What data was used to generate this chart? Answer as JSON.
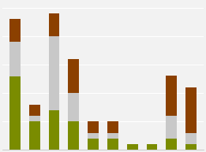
{
  "bars": [
    {
      "olive": 13,
      "silver": 6,
      "bronze": 4
    },
    {
      "olive": 5,
      "silver": 1,
      "bronze": 2
    },
    {
      "olive": 7,
      "silver": 13,
      "bronze": 4
    },
    {
      "olive": 5,
      "silver": 5,
      "bronze": 6
    },
    {
      "olive": 2,
      "silver": 1,
      "bronze": 2
    },
    {
      "olive": 2,
      "silver": 1,
      "bronze": 2
    },
    {
      "olive": 1,
      "silver": 0,
      "bronze": 0
    },
    {
      "olive": 1,
      "silver": 0,
      "bronze": 0
    },
    {
      "olive": 2,
      "silver": 4,
      "bronze": 7
    },
    {
      "olive": 1,
      "silver": 2,
      "bronze": 8
    }
  ],
  "color_olive": "#7a8c00",
  "color_silver": "#c8c8c8",
  "color_bronze": "#8B4000",
  "background": "#f2f2f2",
  "bar_width": 0.55,
  "ylim": [
    0,
    26
  ],
  "bar_spacing": 1.0
}
